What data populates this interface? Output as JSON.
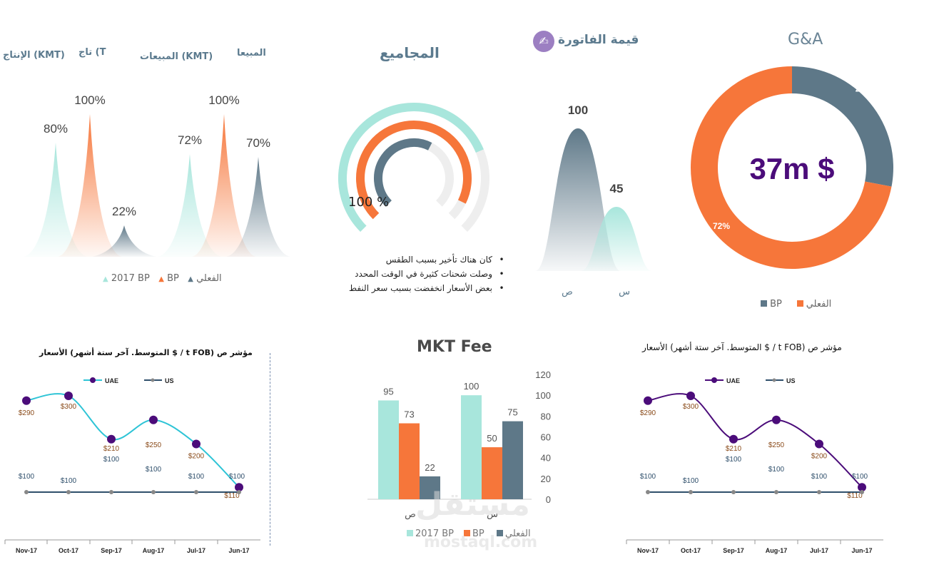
{
  "headers": {
    "production_kmt": "الإنتاج (KMT)",
    "production_t": "تاج (T",
    "sales_kmt": "المبيعات (KMT)",
    "sales": "المبيعا",
    "totals": "المجاميع",
    "invoice_value": "قيمة الفاتورة",
    "ga": "G&A"
  },
  "colors": {
    "teal": "#a8e6dc",
    "orange": "#f6763a",
    "slate": "#5e7888",
    "purple": "#4b0c7a",
    "cyan": "#2ec4d6",
    "navy": "#2f4f6b"
  },
  "peaks_chart": {
    "type": "area",
    "groups": [
      {
        "name": "production",
        "values": [
          {
            "series": "2017 BP",
            "value": 80,
            "label": "80%"
          },
          {
            "series": "BP",
            "value": 100,
            "label": "100%"
          },
          {
            "series": "الفعلي",
            "value": 22,
            "label": "22%"
          }
        ]
      },
      {
        "name": "sales",
        "values": [
          {
            "series": "2017 BP",
            "value": 72,
            "label": "72%"
          },
          {
            "series": "BP",
            "value": 100,
            "label": "100%"
          },
          {
            "series": "الفعلي",
            "value": 70,
            "label": "70%"
          }
        ]
      }
    ],
    "legend": [
      "2017 BP",
      "BP",
      "الفعلي"
    ]
  },
  "gauge_chart": {
    "type": "radial",
    "label": "100 %",
    "rings": [
      {
        "series": "2017 BP",
        "value": 0.75
      },
      {
        "series": "BP",
        "value": 0.93
      },
      {
        "series": "الفعلي",
        "value": 0.6
      }
    ]
  },
  "notes": [
    "كان هناك تأخير بسبب الطقس",
    "وصلت شحنات كثيرة في الوقت المحدد",
    "بعض الأسعار انخفضت بسبب سعر النفط"
  ],
  "invoice_chart": {
    "type": "area",
    "categories": [
      "ص",
      "س"
    ],
    "values": [
      100,
      45
    ],
    "labels": [
      "100",
      "45"
    ]
  },
  "donut_chart": {
    "type": "pie",
    "center_label": "37m $",
    "slices": [
      {
        "name": "BP",
        "value": 28,
        "label": "28%"
      },
      {
        "name": "الفعلي",
        "value": 72,
        "label": "72%"
      }
    ],
    "legend": [
      "BP",
      "الفعلي"
    ]
  },
  "price_chart_left": {
    "type": "line",
    "title": "الأسعار (المتوسط. آخر ستة أشهر $ / t FOB) مؤشر ص",
    "categories": [
      "Nov-17",
      "Oct-17",
      "Sep-17",
      "Aug-17",
      "Jul-17",
      "Jun-17"
    ],
    "series": [
      {
        "name": "UAE",
        "values": [
          290,
          300,
          210,
          250,
          200,
          110
        ],
        "labels": [
          "$290",
          "$300",
          "$210",
          "$250",
          "$200",
          "$110"
        ]
      },
      {
        "name": "US",
        "values": [
          100,
          100,
          100,
          100,
          100,
          100
        ],
        "labels": [
          "$100",
          "$100",
          "$100",
          "$100",
          "$100",
          "$100"
        ]
      }
    ]
  },
  "price_chart_right": {
    "type": "line",
    "title": "الأسعار (المتوسط. آخر ستة أشهر $ / t FOB) مؤشر ص",
    "categories": [
      "Nov-17",
      "Oct-17",
      "Sep-17",
      "Aug-17",
      "Jul-17",
      "Jun-17"
    ],
    "series": [
      {
        "name": "UAE",
        "values": [
          290,
          300,
          210,
          250,
          200,
          110
        ],
        "labels": [
          "$290",
          "$300",
          "$210",
          "$250",
          "$200",
          "$110"
        ]
      },
      {
        "name": "US",
        "values": [
          100,
          100,
          100,
          100,
          100,
          100
        ],
        "labels": [
          "$100",
          "$100",
          "$100",
          "$100",
          "$100",
          "$100"
        ]
      }
    ]
  },
  "mkt_chart": {
    "type": "bar",
    "title": "MKT Fee",
    "categories": [
      "ص",
      "س"
    ],
    "series": [
      {
        "name": "2017 BP",
        "values": [
          95,
          100
        ]
      },
      {
        "name": "BP",
        "values": [
          73,
          50
        ]
      },
      {
        "name": "الفعلي",
        "values": [
          22,
          75
        ]
      }
    ],
    "ylim": [
      0,
      120
    ],
    "yticks": [
      "0",
      "20",
      "40",
      "60",
      "80",
      "100",
      "120"
    ]
  },
  "watermark": {
    "arabic": "مستقل",
    "latin": "mostaql.com"
  }
}
